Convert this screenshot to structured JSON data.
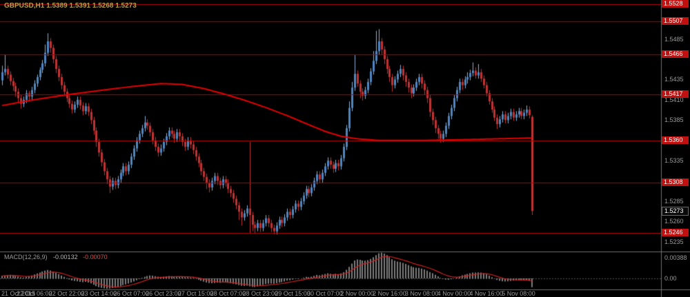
{
  "header": {
    "ohlc_line": "GBPUSD,H1 1.5389 1.5391 1.5268 1.5273"
  },
  "macd_panel": {
    "name": "MACD(12,26,9)",
    "main_value": "-0.00132",
    "signal_value": "-0.00070"
  },
  "chart_data": {
    "type": "candlestick",
    "symbol": "GBPUSD",
    "timeframe": "H1",
    "current_bar_ohlc": [
      1.5389,
      1.5391,
      1.5268,
      1.5273
    ],
    "view_price_range": [
      1.5223,
      1.5533
    ],
    "price_base": 1.5,
    "price_scale": 0.0001,
    "x_labels": [
      "21 Oct 2015",
      "22 Oct 06:00",
      "22 Oct 22:00",
      "23 Oct 14:00",
      "26 Oct 07:00",
      "26 Oct 23:00",
      "27 Oct 15:00",
      "28 Oct 07:00",
      "28 Oct 23:00",
      "29 Oct 15:00",
      "30 Oct 07:00",
      "2 Nov 00:00",
      "2 Nov 16:00",
      "3 Nov 08:00",
      "4 Nov 00:00",
      "4 Nov 16:00",
      "5 Nov 08:00"
    ],
    "price_axis_labels": [
      1.5485,
      1.5435,
      1.541,
      1.5385,
      1.5335,
      1.5285,
      1.526,
      1.5235
    ],
    "hline_prices": [
      1.5528,
      1.5507,
      1.5466,
      1.5417,
      1.536,
      1.5308,
      1.5246
    ],
    "current_price": 1.5273,
    "ma_curve_points": [
      [
        0,
        1.5403
      ],
      [
        0.06,
        1.541
      ],
      [
        0.12,
        1.5416
      ],
      [
        0.18,
        1.5421
      ],
      [
        0.24,
        1.5426
      ],
      [
        0.3,
        1.543
      ],
      [
        0.34,
        1.5429
      ],
      [
        0.38,
        1.5424
      ],
      [
        0.42,
        1.5417
      ],
      [
        0.46,
        1.5409
      ],
      [
        0.5,
        1.54
      ],
      [
        0.54,
        1.539
      ],
      [
        0.58,
        1.5379
      ],
      [
        0.61,
        1.5371
      ],
      [
        0.64,
        1.5365
      ],
      [
        0.67,
        1.5362
      ],
      [
        0.71,
        1.536
      ],
      [
        0.8,
        1.536
      ],
      [
        0.88,
        1.5361
      ],
      [
        1.0,
        1.5363
      ]
    ],
    "candles_ohlc_pips": [
      [
        434,
        452,
        428,
        444
      ],
      [
        444,
        466,
        440,
        448
      ],
      [
        448,
        452,
        436,
        441
      ],
      [
        441,
        445,
        428,
        433
      ],
      [
        433,
        437,
        421,
        427
      ],
      [
        427,
        431,
        414,
        420
      ],
      [
        420,
        424,
        406,
        412
      ],
      [
        412,
        416,
        399,
        405
      ],
      [
        405,
        414,
        401,
        410
      ],
      [
        410,
        422,
        406,
        418
      ],
      [
        418,
        421,
        408,
        414
      ],
      [
        414,
        426,
        410,
        422
      ],
      [
        422,
        434,
        418,
        430
      ],
      [
        430,
        441,
        426,
        438
      ],
      [
        438,
        450,
        434,
        447
      ],
      [
        447,
        459,
        443,
        455
      ],
      [
        455,
        478,
        451,
        468
      ],
      [
        468,
        492,
        464,
        482
      ],
      [
        482,
        486,
        468,
        474
      ],
      [
        474,
        478,
        455,
        460
      ],
      [
        460,
        464,
        443,
        448
      ],
      [
        448,
        452,
        433,
        438
      ],
      [
        438,
        442,
        423,
        428
      ],
      [
        428,
        432,
        415,
        420
      ],
      [
        420,
        424,
        407,
        412
      ],
      [
        412,
        416,
        400,
        405
      ],
      [
        405,
        409,
        393,
        398
      ],
      [
        398,
        408,
        394,
        404
      ],
      [
        404,
        414,
        400,
        410
      ],
      [
        410,
        414,
        398,
        403
      ],
      [
        403,
        407,
        391,
        396
      ],
      [
        396,
        406,
        392,
        402
      ],
      [
        402,
        406,
        390,
        395
      ],
      [
        395,
        399,
        380,
        385
      ],
      [
        385,
        389,
        367,
        372
      ],
      [
        372,
        376,
        352,
        358
      ],
      [
        358,
        362,
        340,
        345
      ],
      [
        345,
        349,
        328,
        333
      ],
      [
        333,
        337,
        317,
        322
      ],
      [
        322,
        326,
        306,
        312
      ],
      [
        312,
        316,
        295,
        303
      ],
      [
        303,
        314,
        299,
        310
      ],
      [
        310,
        314,
        300,
        305
      ],
      [
        305,
        316,
        301,
        312
      ],
      [
        312,
        324,
        308,
        320
      ],
      [
        320,
        332,
        316,
        328
      ],
      [
        328,
        332,
        317,
        322
      ],
      [
        322,
        334,
        318,
        330
      ],
      [
        330,
        344,
        326,
        340
      ],
      [
        340,
        354,
        336,
        350
      ],
      [
        350,
        364,
        346,
        360
      ],
      [
        360,
        372,
        356,
        368
      ],
      [
        368,
        379,
        364,
        375
      ],
      [
        375,
        390,
        371,
        382
      ],
      [
        382,
        386,
        373,
        378
      ],
      [
        378,
        382,
        365,
        370
      ],
      [
        370,
        374,
        355,
        360
      ],
      [
        360,
        364,
        347,
        352
      ],
      [
        352,
        356,
        340,
        345
      ],
      [
        345,
        355,
        341,
        350
      ],
      [
        350,
        362,
        346,
        358
      ],
      [
        358,
        369,
        354,
        365
      ],
      [
        365,
        376,
        361,
        372
      ],
      [
        372,
        376,
        363,
        368
      ],
      [
        368,
        372,
        357,
        362
      ],
      [
        362,
        374,
        358,
        370
      ],
      [
        370,
        374,
        360,
        365
      ],
      [
        365,
        369,
        353,
        358
      ],
      [
        358,
        362,
        347,
        352
      ],
      [
        352,
        364,
        348,
        360
      ],
      [
        360,
        364,
        350,
        355
      ],
      [
        355,
        359,
        343,
        348
      ],
      [
        348,
        352,
        335,
        340
      ],
      [
        340,
        344,
        327,
        332
      ],
      [
        332,
        336,
        317,
        322
      ],
      [
        322,
        326,
        310,
        315
      ],
      [
        315,
        319,
        300,
        308
      ],
      [
        308,
        312,
        296,
        302
      ],
      [
        302,
        314,
        298,
        310
      ],
      [
        310,
        320,
        306,
        316
      ],
      [
        316,
        320,
        305,
        310
      ],
      [
        310,
        314,
        300,
        305
      ],
      [
        305,
        316,
        301,
        312
      ],
      [
        312,
        316,
        303,
        308
      ],
      [
        308,
        312,
        295,
        300
      ],
      [
        300,
        304,
        290,
        295
      ],
      [
        295,
        299,
        283,
        288
      ],
      [
        288,
        292,
        275,
        280
      ],
      [
        280,
        284,
        262,
        272
      ],
      [
        272,
        276,
        255,
        265
      ],
      [
        265,
        274,
        261,
        270
      ],
      [
        270,
        280,
        266,
        276
      ],
      [
        276,
        358,
        246,
        268
      ],
      [
        268,
        272,
        248,
        256
      ],
      [
        256,
        260,
        245,
        252
      ],
      [
        252,
        262,
        248,
        258
      ],
      [
        258,
        262,
        247,
        252
      ],
      [
        252,
        262,
        248,
        258
      ],
      [
        258,
        268,
        254,
        264
      ],
      [
        264,
        268,
        253,
        258
      ],
      [
        258,
        262,
        247,
        252
      ],
      [
        252,
        256,
        244,
        248
      ],
      [
        248,
        259,
        244,
        255
      ],
      [
        255,
        266,
        251,
        262
      ],
      [
        262,
        266,
        253,
        258
      ],
      [
        258,
        269,
        254,
        265
      ],
      [
        265,
        276,
        261,
        272
      ],
      [
        272,
        276,
        263,
        268
      ],
      [
        268,
        279,
        264,
        275
      ],
      [
        275,
        286,
        271,
        282
      ],
      [
        282,
        286,
        273,
        278
      ],
      [
        278,
        289,
        274,
        285
      ],
      [
        285,
        296,
        281,
        292
      ],
      [
        292,
        304,
        288,
        300
      ],
      [
        300,
        304,
        290,
        295
      ],
      [
        295,
        306,
        291,
        302
      ],
      [
        302,
        314,
        298,
        310
      ],
      [
        310,
        322,
        306,
        318
      ],
      [
        318,
        322,
        307,
        312
      ],
      [
        312,
        324,
        308,
        320
      ],
      [
        320,
        332,
        316,
        328
      ],
      [
        328,
        339,
        324,
        335
      ],
      [
        335,
        339,
        325,
        330
      ],
      [
        330,
        334,
        320,
        325
      ],
      [
        325,
        336,
        321,
        332
      ],
      [
        332,
        336,
        323,
        328
      ],
      [
        328,
        342,
        324,
        338
      ],
      [
        338,
        356,
        334,
        352
      ],
      [
        352,
        379,
        348,
        375
      ],
      [
        375,
        408,
        371,
        400
      ],
      [
        400,
        432,
        396,
        425
      ],
      [
        425,
        465,
        421,
        442
      ],
      [
        442,
        446,
        426,
        430
      ],
      [
        430,
        434,
        412,
        420
      ],
      [
        420,
        424,
        409,
        415
      ],
      [
        415,
        426,
        411,
        422
      ],
      [
        422,
        436,
        418,
        432
      ],
      [
        432,
        449,
        428,
        445
      ],
      [
        445,
        470,
        441,
        458
      ],
      [
        458,
        495,
        454,
        470
      ],
      [
        470,
        497,
        466,
        482
      ],
      [
        482,
        486,
        466,
        472
      ],
      [
        472,
        476,
        454,
        460
      ],
      [
        460,
        464,
        442,
        448
      ],
      [
        448,
        452,
        432,
        438
      ],
      [
        438,
        442,
        420,
        428
      ],
      [
        428,
        439,
        424,
        435
      ],
      [
        435,
        446,
        431,
        442
      ],
      [
        442,
        453,
        438,
        448
      ],
      [
        448,
        452,
        434,
        440
      ],
      [
        440,
        444,
        426,
        432
      ],
      [
        432,
        436,
        419,
        425
      ],
      [
        425,
        429,
        412,
        418
      ],
      [
        418,
        429,
        414,
        425
      ],
      [
        425,
        436,
        421,
        432
      ],
      [
        432,
        442,
        428,
        438
      ],
      [
        438,
        442,
        424,
        430
      ],
      [
        430,
        434,
        416,
        422
      ],
      [
        422,
        426,
        406,
        412
      ],
      [
        412,
        416,
        389,
        395
      ],
      [
        395,
        399,
        379,
        385
      ],
      [
        385,
        389,
        369,
        375
      ],
      [
        375,
        379,
        362,
        368
      ],
      [
        368,
        372,
        357,
        362
      ],
      [
        362,
        372,
        358,
        368
      ],
      [
        368,
        382,
        364,
        378
      ],
      [
        378,
        394,
        374,
        390
      ],
      [
        390,
        404,
        386,
        400
      ],
      [
        400,
        416,
        396,
        412
      ],
      [
        412,
        426,
        408,
        422
      ],
      [
        422,
        436,
        418,
        432
      ],
      [
        432,
        436,
        422,
        428
      ],
      [
        428,
        439,
        424,
        435
      ],
      [
        435,
        444,
        430,
        438
      ],
      [
        438,
        447,
        434,
        443
      ],
      [
        443,
        456,
        439,
        446
      ],
      [
        446,
        450,
        436,
        440
      ],
      [
        440,
        454,
        436,
        444
      ],
      [
        444,
        448,
        432,
        436
      ],
      [
        436,
        440,
        424,
        428
      ],
      [
        428,
        432,
        414,
        418
      ],
      [
        418,
        422,
        404,
        408
      ],
      [
        408,
        412,
        394,
        398
      ],
      [
        398,
        402,
        384,
        388
      ],
      [
        388,
        392,
        374,
        380
      ],
      [
        380,
        390,
        376,
        386
      ],
      [
        386,
        396,
        382,
        392
      ],
      [
        392,
        396,
        381,
        385
      ],
      [
        385,
        394,
        381,
        390
      ],
      [
        390,
        399,
        386,
        395
      ],
      [
        395,
        399,
        384,
        388
      ],
      [
        388,
        396,
        384,
        392
      ],
      [
        392,
        400,
        388,
        396
      ],
      [
        396,
        400,
        386,
        390
      ],
      [
        390,
        398,
        386,
        394
      ],
      [
        394,
        403,
        390,
        398
      ],
      [
        398,
        402,
        387,
        391
      ],
      [
        389,
        391,
        268,
        273
      ]
    ],
    "macd": {
      "type": "histogram",
      "params": "12,26,9",
      "value_scale": 1e-05,
      "ylim": [
        -0.00165,
        0.00395
      ],
      "axis_max_label": "0.00388",
      "axis_zero_label": "0.00",
      "signal": "EMA9 of histogram",
      "histogram_units": [
        40,
        45,
        50,
        55,
        48,
        40,
        30,
        20,
        15,
        25,
        35,
        45,
        60,
        75,
        90,
        105,
        118,
        128,
        120,
        105,
        85,
        65,
        45,
        25,
        5,
        -15,
        -30,
        -38,
        -42,
        -50,
        -55,
        -52,
        -60,
        -75,
        -95,
        -115,
        -130,
        -142,
        -150,
        -155,
        -152,
        -145,
        -138,
        -128,
        -115,
        -100,
        -90,
        -78,
        -62,
        -45,
        -28,
        -10,
        8,
        25,
        38,
        45,
        42,
        35,
        28,
        25,
        28,
        32,
        36,
        34,
        30,
        32,
        30,
        26,
        20,
        18,
        14,
        8,
        -5,
        -20,
        -35,
        -48,
        -60,
        -70,
        -72,
        -68,
        -65,
        -66,
        -62,
        -60,
        -65,
        -72,
        -80,
        -90,
        -100,
        -110,
        -112,
        -108,
        -118,
        -125,
        -128,
        -120,
        -110,
        -98,
        -85,
        -80,
        -78,
        -80,
        -72,
        -60,
        -55,
        -45,
        -32,
        -28,
        -18,
        -5,
        -8,
        2,
        12,
        25,
        20,
        28,
        40,
        52,
        48,
        58,
        68,
        78,
        72,
        65,
        70,
        66,
        75,
        95,
        130,
        175,
        225,
        270,
        285,
        280,
        270,
        268,
        275,
        295,
        320,
        350,
        380,
        388,
        375,
        350,
        320,
        290,
        268,
        255,
        248,
        235,
        218,
        200,
        182,
        170,
        162,
        158,
        148,
        135,
        118,
        98,
        78,
        55,
        32,
        10,
        -8,
        -18,
        -20,
        -12,
        0,
        15,
        32,
        48,
        58,
        68,
        78,
        88,
        90,
        92,
        88,
        78,
        62,
        42,
        20,
        -2,
        -22,
        -35,
        -42,
        -45,
        -42,
        -38,
        -32,
        -28,
        -25,
        -28,
        -25,
        -20,
        -35,
        -132
      ]
    }
  },
  "colors": {
    "background": "#000000",
    "bull": "#4f86c2",
    "bear": "#c03333",
    "wick_bull": "#8fb2d6",
    "wick_bear": "#c03333",
    "ma_line": "#e60000",
    "hline": "#b40000",
    "hline_label_bg": "#c01010",
    "current_label_bg": "#0a0a0a",
    "histogram": "#7d7d7d",
    "signal_line": "#cc2222",
    "axis_text": "#9a9a9a",
    "title_text": "#b8a04a",
    "separator": "#707070"
  }
}
